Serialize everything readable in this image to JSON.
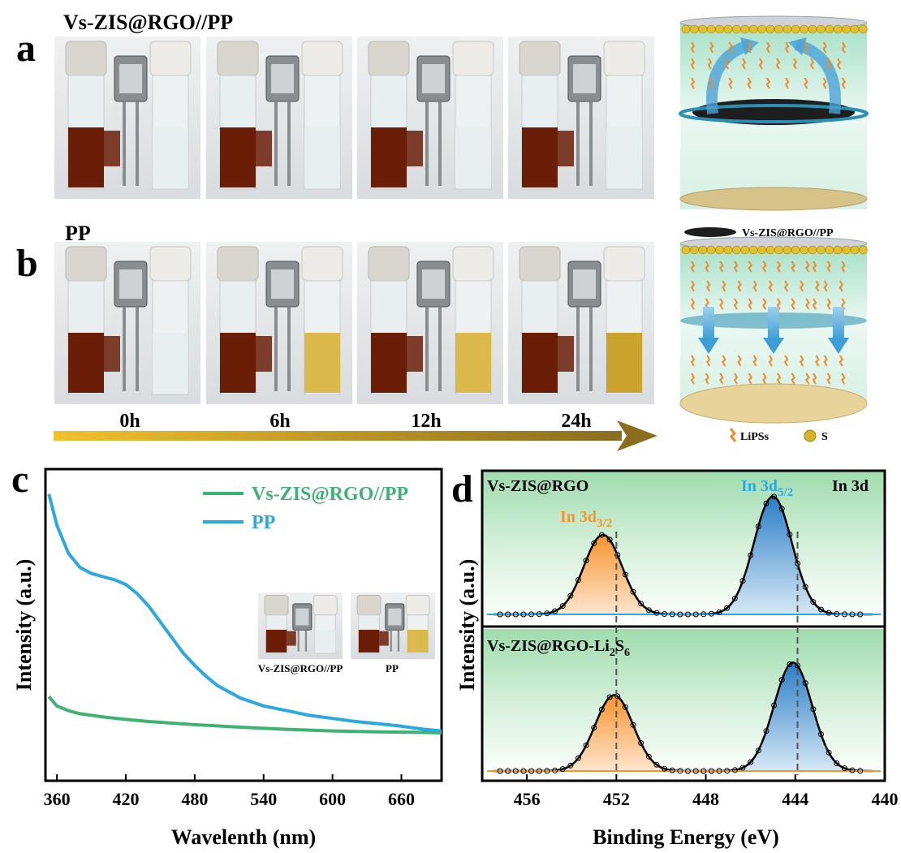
{
  "panel_a": {
    "letter": "a",
    "label": "Vs-ZIS@RGO//PP"
  },
  "panel_b": {
    "letter": "b",
    "label": "PP"
  },
  "timeline": {
    "times": [
      "0h",
      "6h",
      "12h",
      "24h"
    ],
    "colors": {
      "start": "#f2c12e",
      "end": "#8a6d1f"
    }
  },
  "schematic": {
    "separator_label": "Vs-ZIS@RGO//PP",
    "legend_lipss": "LiPSs",
    "legend_s": "S"
  },
  "colors": {
    "dark_solution": "#6a1e08",
    "yellow_solution": "#d8b23a",
    "clear_solution": "#e7ecef",
    "green_bg": "#a9dfb3",
    "uv_green": "#3cb371",
    "uv_blue": "#2aa9e0",
    "xps_orange": "#f7942e",
    "xps_blue": "#2b7ec6"
  },
  "chart_data": [
    {
      "type": "line",
      "panel": "c",
      "xlabel": "Wavelenth (nm)",
      "ylabel": "Intensity (a.u.)",
      "xlim": [
        350,
        695
      ],
      "xticks": [
        360,
        420,
        480,
        540,
        600,
        660
      ],
      "grid": false,
      "legend_position": "top-right",
      "inset_labels": [
        "Vs-ZIS@RGO//PP",
        "PP"
      ],
      "series": [
        {
          "name": "Vs-ZIS@RGO//PP",
          "color": "#3cb371",
          "x": [
            353,
            360,
            370,
            380,
            400,
            420,
            440,
            480,
            520,
            560,
            600,
            640,
            680,
            695
          ],
          "y": [
            0.27,
            0.24,
            0.225,
            0.215,
            0.205,
            0.197,
            0.19,
            0.18,
            0.172,
            0.165,
            0.16,
            0.157,
            0.155,
            0.154
          ]
        },
        {
          "name": "PP",
          "color": "#2aa9e0",
          "x": [
            353,
            360,
            370,
            380,
            390,
            400,
            410,
            420,
            430,
            440,
            450,
            460,
            470,
            480,
            490,
            500,
            520,
            540,
            560,
            580,
            600,
            620,
            640,
            660,
            680,
            695
          ],
          "y": [
            0.92,
            0.82,
            0.73,
            0.685,
            0.665,
            0.655,
            0.645,
            0.63,
            0.6,
            0.56,
            0.51,
            0.46,
            0.41,
            0.37,
            0.335,
            0.305,
            0.265,
            0.24,
            0.225,
            0.21,
            0.2,
            0.19,
            0.183,
            0.175,
            0.165,
            0.16
          ]
        }
      ]
    },
    {
      "type": "line",
      "panel": "d",
      "xlabel": "Binding Energy (eV)",
      "ylabel": "Intensity (a.u.)",
      "x_reversed": true,
      "xlim": [
        458,
        440
      ],
      "xticks": [
        456,
        452,
        448,
        444,
        440
      ],
      "corner_label": "In 3d",
      "dashed_lines_at": [
        452,
        443.9
      ],
      "subplots": [
        {
          "name": "Vs-ZIS@RGO",
          "peaks": [
            {
              "label_main": "In 3d",
              "label_sub": "3/2",
              "center": 452.6,
              "height": 0.58,
              "color": "#f7942e"
            },
            {
              "label_main": "In 3d",
              "label_sub": "5/2",
              "center": 445.0,
              "height": 0.86,
              "color": "#2b7ec6"
            }
          ]
        },
        {
          "name_main": "Vs-ZIS@RGO-Li",
          "name_sub1": "2",
          "name_mid": "S",
          "name_sub2": "6",
          "peaks": [
            {
              "center": 452.1,
              "height": 0.56,
              "color": "#f7942e"
            },
            {
              "center": 444.1,
              "height": 0.8,
              "color": "#2b7ec6"
            }
          ]
        }
      ]
    }
  ]
}
